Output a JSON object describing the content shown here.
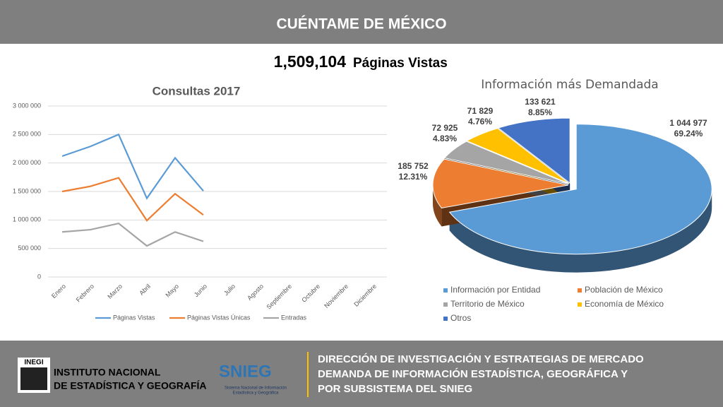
{
  "header": {
    "title": "CUÉNTAME DE MÉXICO"
  },
  "headline": {
    "number": "1,509,104",
    "text": "Páginas Vistas"
  },
  "chart_data": [
    {
      "type": "line",
      "title": "Consultas 2017",
      "categories": [
        "Enero",
        "Febrero",
        "Marzo",
        "Abril",
        "Mayo",
        "Junio",
        "Julio",
        "Agosto",
        "Septiembre",
        "Octubre",
        "Noviembre",
        "Diciembre"
      ],
      "series": [
        {
          "name": "Páginas Vistas",
          "color": "#5b9bd5",
          "values": [
            2120000,
            2290000,
            2500000,
            1380000,
            2090000,
            1510000,
            null,
            null,
            null,
            null,
            null,
            null
          ]
        },
        {
          "name": "Páginas Vistas Únicas",
          "color": "#ed7d31",
          "values": [
            1500000,
            1590000,
            1740000,
            990000,
            1460000,
            1090000,
            null,
            null,
            null,
            null,
            null,
            null
          ]
        },
        {
          "name": "Entradas",
          "color": "#a5a5a5",
          "values": [
            790000,
            830000,
            940000,
            545000,
            790000,
            625000,
            null,
            null,
            null,
            null,
            null,
            null
          ]
        }
      ],
      "ylim": [
        0,
        3000000
      ],
      "yticks": [
        0,
        {
          "value": 500000,
          "label": "500 000"
        },
        {
          "value": 1000000,
          "label": "1 000 000"
        },
        {
          "value": 1500000,
          "label": "1 500 000"
        },
        {
          "value": 2000000,
          "label": "2 000 000"
        },
        {
          "value": 2500000,
          "label": "2 500 000"
        },
        {
          "value": 3000000,
          "label": "3 000 000"
        }
      ],
      "grid": true,
      "legend": "bottom"
    },
    {
      "type": "pie",
      "title": "Información más Demandada",
      "categories": [
        "Información por Entidad",
        "Población de México",
        "Territorio de México",
        "Economía de México",
        "Otros"
      ],
      "values": [
        1044977,
        185752,
        72925,
        71829,
        133621
      ],
      "value_labels": [
        "1 044 977",
        "185 752",
        "72 925",
        "71 829",
        "133 621"
      ],
      "percent_labels": [
        "69.24%",
        "12.31%",
        "4.83%",
        "4.76%",
        "8.85%"
      ],
      "colors": [
        "#5b9bd5",
        "#ed7d31",
        "#a5a5a5",
        "#ffc000",
        "#4472c4"
      ],
      "legend": "bottom"
    }
  ],
  "footer": {
    "logo_text": "INEGI",
    "institution": [
      "INSTITUTO NACIONAL",
      "DE ESTADÍSTICA Y GEOGRAFÍA"
    ],
    "snieg": "SNIEG",
    "snieg_subtitle": [
      "Sistema Nacional de Información",
      "Estadística y Geográfica"
    ],
    "lines": [
      "DIRECCIÓN DE INVESTIGACIÓN Y ESTRATEGIAS DE MERCADO",
      "DEMANDA DE INFORMACIÓN ESTADÍSTICA, GEOGRÁFICA Y",
      "POR SUBSISTEMA DEL SNIEG"
    ]
  }
}
